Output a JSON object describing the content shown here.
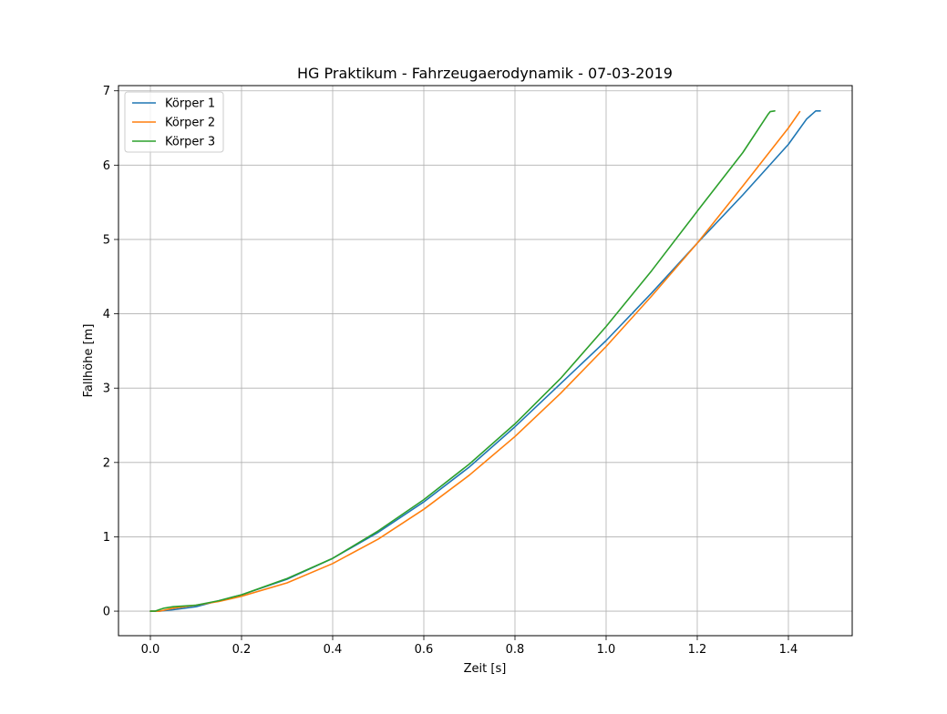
{
  "chart_data": {
    "type": "line",
    "title": "HG Praktikum - Fahrzeugaerodynamik - 07-03-2019",
    "xlabel": "Zeit [s]",
    "ylabel": "Fallhöhe [m]",
    "xlim": [
      -0.07,
      1.54
    ],
    "ylim": [
      -0.33,
      7.07
    ],
    "xticks": [
      0.0,
      0.2,
      0.4,
      0.6,
      0.8,
      1.0,
      1.2,
      1.4
    ],
    "xtick_labels": [
      "0.0",
      "0.2",
      "0.4",
      "0.6",
      "0.8",
      "1.0",
      "1.2",
      "1.4"
    ],
    "yticks": [
      0,
      1,
      2,
      3,
      4,
      5,
      6,
      7
    ],
    "ytick_labels": [
      "0",
      "1",
      "2",
      "3",
      "4",
      "5",
      "6",
      "7"
    ],
    "grid": true,
    "legend_position": "top-left",
    "colors": {
      "series1": "#1f77b4",
      "series2": "#ff7f0e",
      "series3": "#2ca02c",
      "grid": "#b0b0b0"
    },
    "series": [
      {
        "name": "Körper 1",
        "color": "#1f77b4",
        "x": [
          0.0,
          0.02,
          0.05,
          0.1,
          0.15,
          0.2,
          0.3,
          0.4,
          0.5,
          0.6,
          0.7,
          0.8,
          0.9,
          1.0,
          1.1,
          1.2,
          1.3,
          1.4,
          1.44,
          1.46,
          1.47
        ],
        "y": [
          0.0,
          0.0,
          0.02,
          0.06,
          0.14,
          0.22,
          0.43,
          0.71,
          1.06,
          1.47,
          1.94,
          2.48,
          3.06,
          3.64,
          4.28,
          4.95,
          5.6,
          6.28,
          6.62,
          6.73,
          6.73
        ]
      },
      {
        "name": "Körper 2",
        "color": "#ff7f0e",
        "x": [
          0.0,
          0.02,
          0.05,
          0.1,
          0.15,
          0.2,
          0.3,
          0.4,
          0.5,
          0.6,
          0.7,
          0.8,
          0.9,
          1.0,
          1.1,
          1.2,
          1.3,
          1.4,
          1.425
        ],
        "y": [
          0.0,
          0.0,
          0.04,
          0.08,
          0.13,
          0.2,
          0.38,
          0.64,
          0.97,
          1.37,
          1.83,
          2.35,
          2.93,
          3.56,
          4.24,
          4.95,
          5.72,
          6.5,
          6.72
        ]
      },
      {
        "name": "Körper 3",
        "color": "#2ca02c",
        "x": [
          0.0,
          0.01,
          0.02,
          0.03,
          0.05,
          0.1,
          0.15,
          0.2,
          0.3,
          0.4,
          0.5,
          0.6,
          0.7,
          0.8,
          0.9,
          1.0,
          1.1,
          1.2,
          1.3,
          1.355,
          1.36,
          1.37
        ],
        "y": [
          0.0,
          0.0,
          0.02,
          0.04,
          0.06,
          0.08,
          0.14,
          0.22,
          0.44,
          0.71,
          1.08,
          1.5,
          1.98,
          2.52,
          3.13,
          3.83,
          4.58,
          5.38,
          6.17,
          6.68,
          6.72,
          6.73
        ]
      }
    ]
  }
}
